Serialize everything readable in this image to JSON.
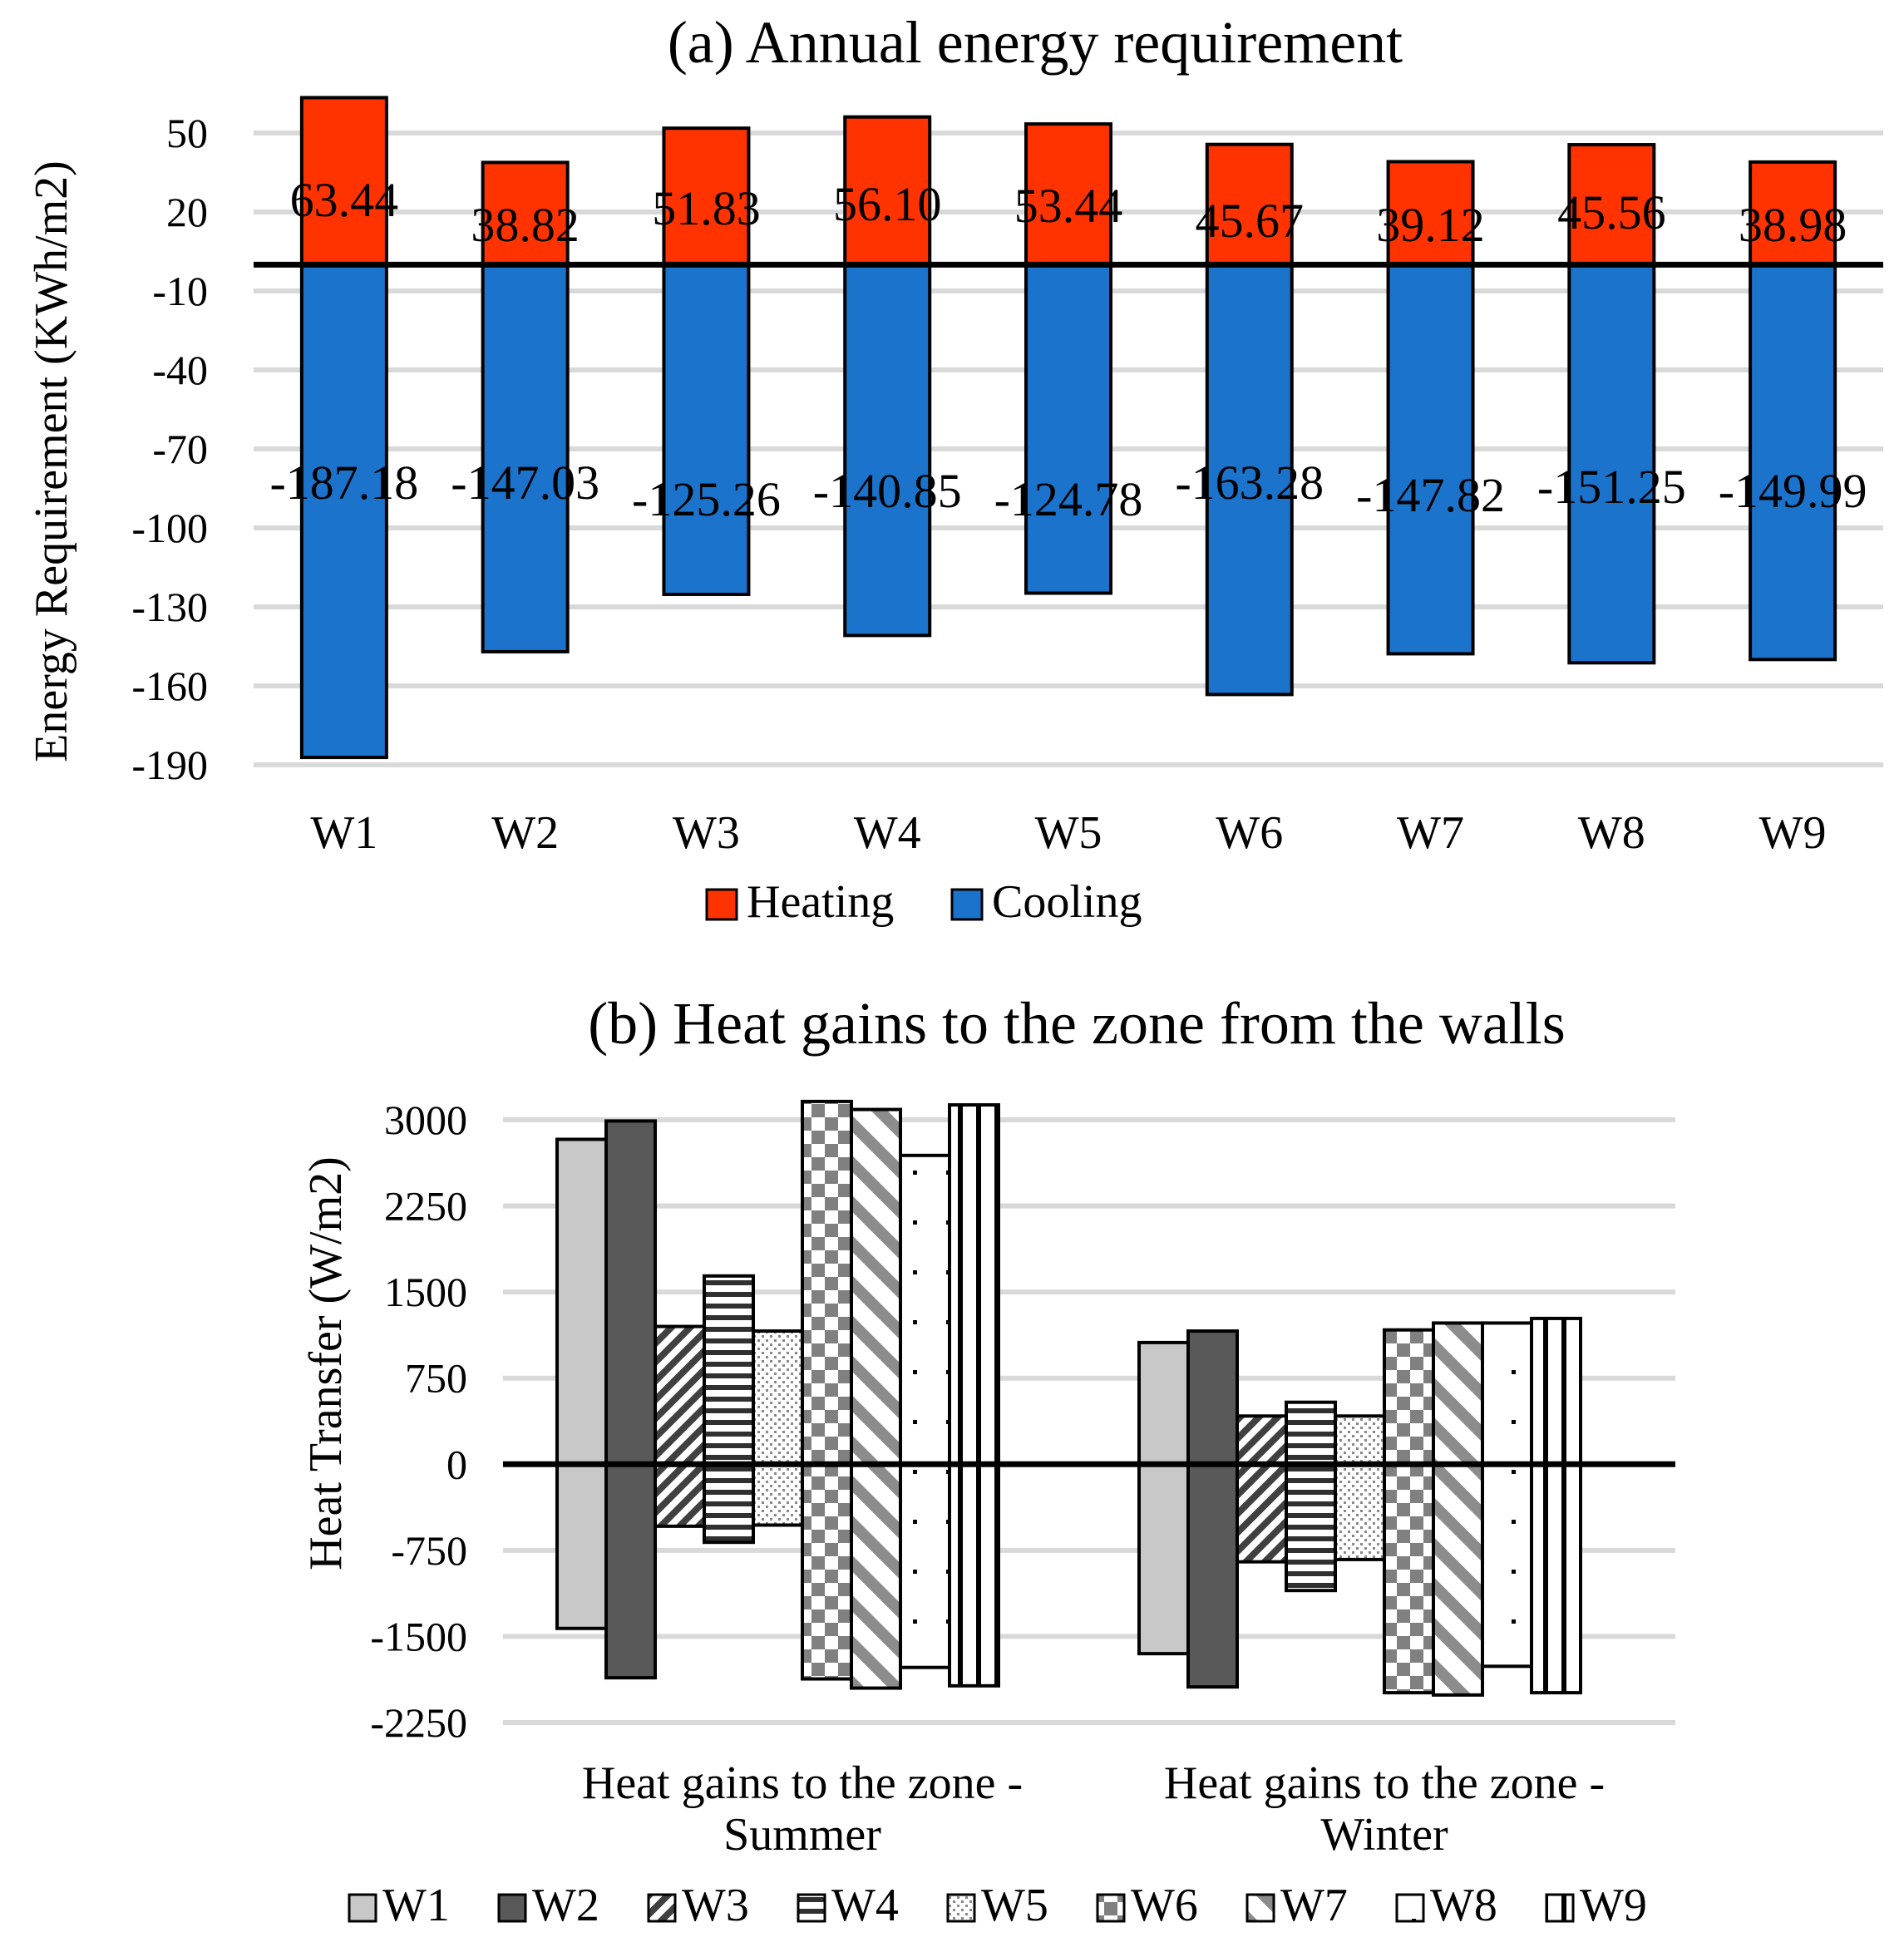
{
  "chart_data": [
    {
      "type": "bar",
      "title": "(a) Annual energy requirement",
      "ylabel": "Energy Requirement (KWh/m2)",
      "xlabel": "",
      "ylim": [
        -190,
        50
      ],
      "yticks": [
        "50",
        "20",
        "-10",
        "-40",
        "-70",
        "-100",
        "-130",
        "-160",
        "-190"
      ],
      "categories": [
        "W1",
        "W2",
        "W3",
        "W4",
        "W5",
        "W6",
        "W7",
        "W8",
        "W9"
      ],
      "series": [
        {
          "name": "Heating",
          "color": "#ff3300",
          "values": [
            63.44,
            38.82,
            51.83,
            56.1,
            53.44,
            45.67,
            39.12,
            45.56,
            38.98
          ],
          "labels": [
            "63.44",
            "38.82",
            "51.83",
            "56.10",
            "53.44",
            "45.67",
            "39.12",
            "45.56",
            "38.98"
          ]
        },
        {
          "name": "Cooling",
          "color": "#1b73cc",
          "values": [
            -187.18,
            -147.03,
            -125.26,
            -140.85,
            -124.78,
            -163.28,
            -147.82,
            -151.25,
            -149.99
          ],
          "labels": [
            "-187.18",
            "-147.03",
            "-125.26",
            "-140.85",
            "-124.78",
            "-163.28",
            "-147.82",
            "-151.25",
            "-149.99"
          ]
        }
      ],
      "legend": [
        "Heating",
        "Cooling"
      ],
      "legend_position": "bottom"
    },
    {
      "type": "bar",
      "title": "(b) Heat gains to the zone from the walls",
      "ylabel": "Heat Transfer (W/m2)",
      "xlabel": "",
      "ylim": [
        -2250,
        3000
      ],
      "yticks": [
        "3000",
        "2250",
        "1500",
        "750",
        "0",
        "-750",
        "-1500",
        "-2250"
      ],
      "categories": [
        "Heat gains to the zone - Summer",
        "Heat gains to the zone - Winter"
      ],
      "category_lines": [
        [
          "Heat gains to the zone -",
          "Summer"
        ],
        [
          "Heat gains to the zone -",
          "Winter"
        ]
      ],
      "series": [
        {
          "name": "W1",
          "pattern": "solid-light",
          "positive": [
            2830,
            1060
          ],
          "negative": [
            -1430,
            -1650
          ]
        },
        {
          "name": "W2",
          "pattern": "solid-dark",
          "positive": [
            2990,
            1160
          ],
          "negative": [
            -1860,
            -1940
          ]
        },
        {
          "name": "W3",
          "pattern": "diagonal-hatch",
          "positive": [
            1200,
            420
          ],
          "negative": [
            -540,
            -850
          ]
        },
        {
          "name": "W4",
          "pattern": "horizontal-stripes",
          "positive": [
            1640,
            540
          ],
          "negative": [
            -680,
            -1100
          ]
        },
        {
          "name": "W5",
          "pattern": "dotted",
          "positive": [
            1160,
            420
          ],
          "negative": [
            -530,
            -830
          ]
        },
        {
          "name": "W6",
          "pattern": "checker",
          "positive": [
            3160,
            1170
          ],
          "negative": [
            -1870,
            -1990
          ]
        },
        {
          "name": "W7",
          "pattern": "wide-diagonal",
          "positive": [
            3090,
            1230
          ],
          "negative": [
            -1950,
            -2010
          ]
        },
        {
          "name": "W8",
          "pattern": "sparse-dots",
          "positive": [
            2690,
            1230
          ],
          "negative": [
            -1770,
            -1760
          ]
        },
        {
          "name": "W9",
          "pattern": "vertical-stripes",
          "positive": [
            3130,
            1270
          ],
          "negative": [
            -1930,
            -1990
          ]
        }
      ],
      "legend": [
        "W1",
        "W2",
        "W3",
        "W4",
        "W5",
        "W6",
        "W7",
        "W8",
        "W9"
      ],
      "legend_position": "bottom"
    }
  ]
}
